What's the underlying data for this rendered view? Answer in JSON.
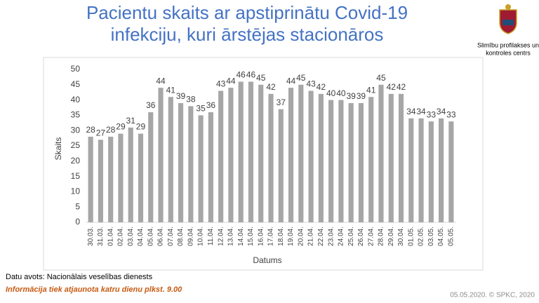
{
  "chart_data": {
    "type": "bar",
    "title": [
      "Pacientu skaits ar apstiprinātu Covid-19",
      "infekciju, kuri ārstējas stacionāros"
    ],
    "x_label": "Datums",
    "y_label": "Skaits",
    "categories": [
      "30.03.",
      "31.03.",
      "01.04.",
      "02.04.",
      "03.04.",
      "04.04.",
      "05.04.",
      "06.04.",
      "07.04.",
      "08.04.",
      "09.04.",
      "10.04.",
      "11.04.",
      "12.04.",
      "13.04.",
      "14.04.",
      "15.04.",
      "16.04.",
      "17.04.",
      "18.04.",
      "19.04.",
      "20.04.",
      "21.04.",
      "22.04.",
      "23.04.",
      "24.04.",
      "25.04.",
      "26.04.",
      "27.04.",
      "28.04.",
      "29.04.",
      "30.04.",
      "01.05.",
      "02.05.",
      "03.05.",
      "04.05.",
      "05.05."
    ],
    "values": [
      28,
      27,
      28,
      29,
      31,
      29,
      36,
      44,
      41,
      39,
      38,
      35,
      36,
      43,
      44,
      46,
      46,
      45,
      42,
      37,
      44,
      45,
      43,
      42,
      40,
      40,
      39,
      39,
      41,
      45,
      42,
      42,
      34,
      34,
      33,
      34,
      33
    ],
    "color": "#a6a6a6",
    "ylim": [
      0,
      50
    ],
    "yticks": [
      0,
      5,
      10,
      15,
      20,
      25,
      30,
      35,
      40,
      45,
      50
    ],
    "grid": false
  },
  "header": {
    "logo_text": [
      "Slimību profilakses un",
      "kontroles centrs"
    ]
  },
  "footer": {
    "source": "Datu avots: Nacionālais veselības dienests",
    "update_note": "Informācija tiek atjaunota katru dienu plkst. 9.00",
    "credit": "05.05.2020. © SPKC, 2020"
  }
}
